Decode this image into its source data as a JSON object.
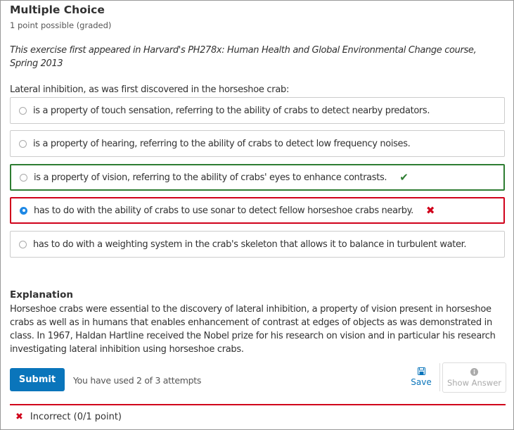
{
  "problem": {
    "title": "Multiple Choice",
    "points": "1 point possible (graded)",
    "intro": "This exercise first appeared in Harvard's PH278x: Human Health and Global Environmental Change course, Spring 2013",
    "question": "Lateral inhibition, as was first discovered in the horseshoe crab:",
    "options": [
      {
        "label": "is a property of touch sensation, referring to the ability of crabs to detect nearby predators.",
        "selected": false,
        "status": "none"
      },
      {
        "label": "is a property of hearing, referring to the ability of crabs to detect low frequency noises.",
        "selected": false,
        "status": "none"
      },
      {
        "label": "is a property of vision, referring to the ability of crabs' eyes to enhance contrasts.",
        "selected": false,
        "status": "correct",
        "mark": "✔"
      },
      {
        "label": "has to do with the ability of crabs to use sonar to detect fellow horseshoe crabs nearby.",
        "selected": true,
        "status": "incorrect",
        "mark": "✖"
      },
      {
        "label": "has to do with a weighting system in the crab's skeleton that allows it to balance in turbulent water.",
        "selected": false,
        "status": "none"
      }
    ]
  },
  "explanation": {
    "heading": "Explanation",
    "body": "Horseshoe crabs were essential to the discovery of lateral inhibition, a property of vision present in horseshoe crabs as well as in humans that enables enhancement of contrast at edges of objects as was demonstrated in class. In 1967, Haldan Hartline received the Nobel prize for his research on vision and in particular his research investigating lateral inhibition using horseshoe crabs."
  },
  "actions": {
    "submit": "Submit",
    "attempts": "You have used 2 of 3 attempts",
    "save": "Save",
    "save_icon": "floppy-disk",
    "show_answer": "Show Answer",
    "show_icon": "info-circle"
  },
  "result": {
    "icon": "✖",
    "text": "Incorrect (0/1 point)"
  },
  "colors": {
    "correct": "#2e7d32",
    "incorrect": "#d0021b",
    "primary": "#0a75bb"
  }
}
